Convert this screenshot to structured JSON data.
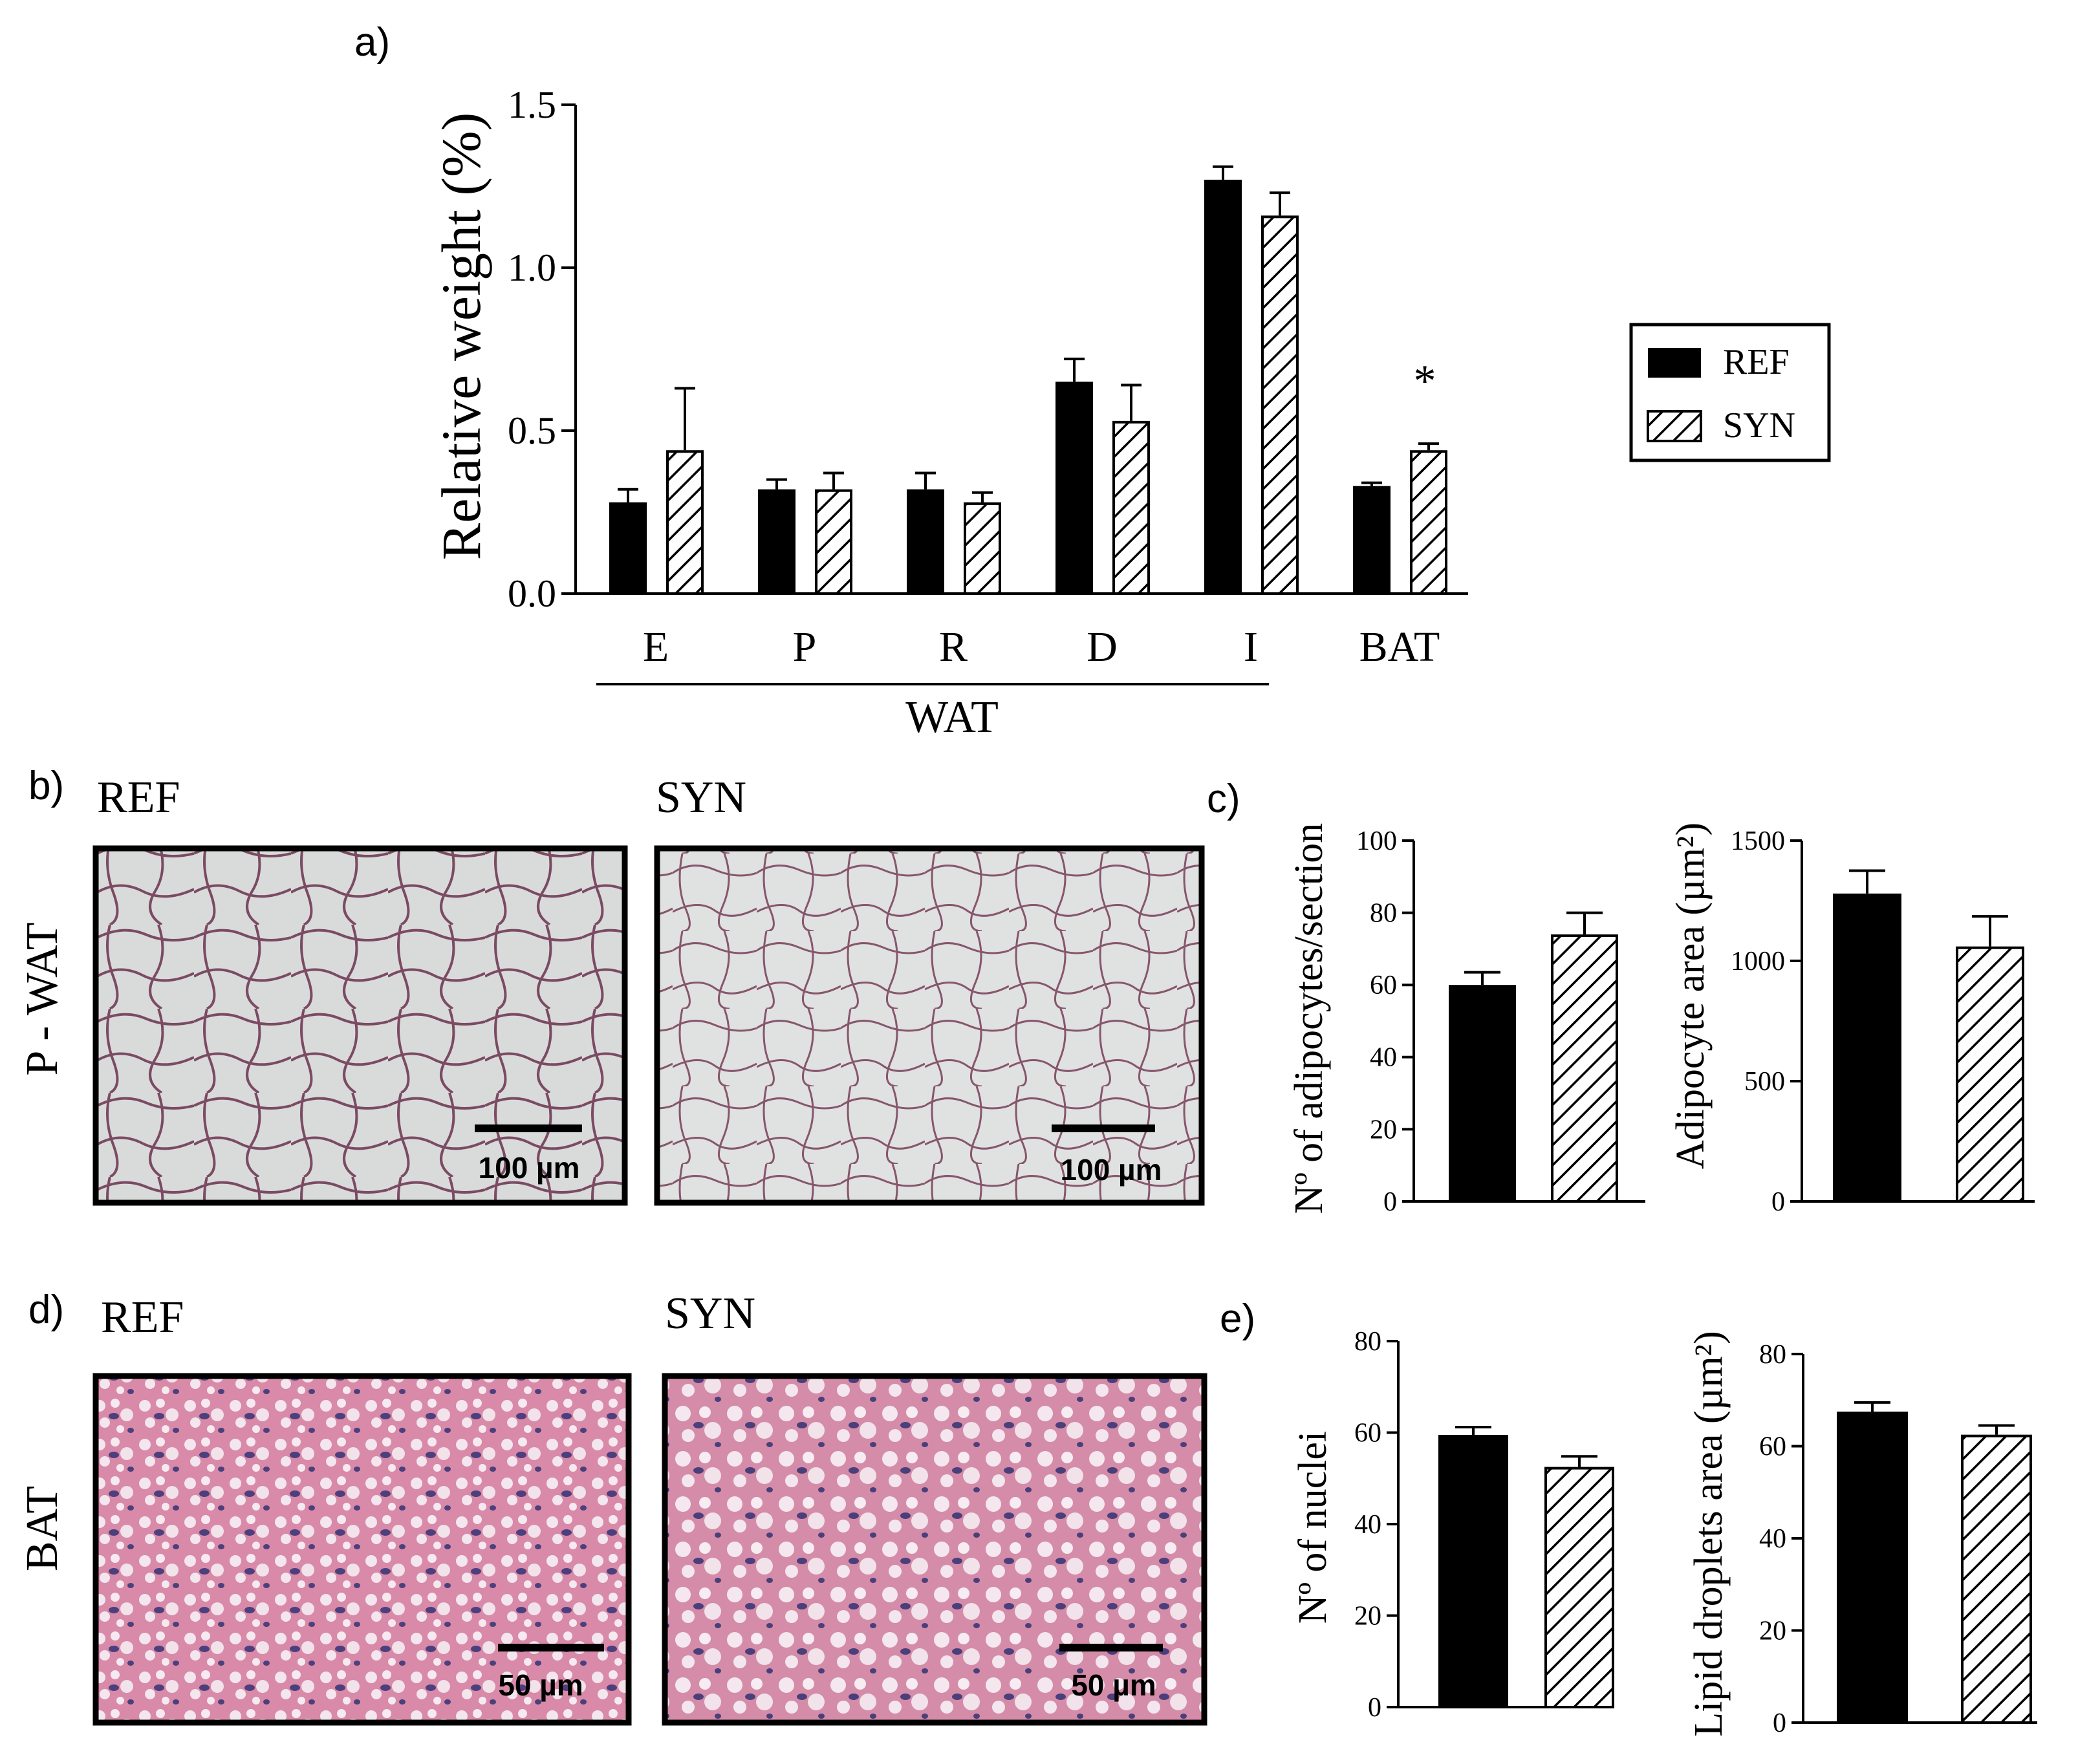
{
  "panels": {
    "a": "a)",
    "b": "b)",
    "c": "c)",
    "d": "d)",
    "e": "e)"
  },
  "legend": {
    "ref": "REF",
    "syn": "SYN"
  },
  "colors": {
    "ref_fill": "#000000",
    "syn_hatch": "#000000",
    "wat_tissue": "#c9cbca",
    "bat_tissue": "#d98aa8",
    "bat_nuclei": "#4a3f7a"
  },
  "chart_data": [
    {
      "panel": "a",
      "type": "bar",
      "ylabel": "Relative weight (%)",
      "ylim": [
        0,
        1.5
      ],
      "yticks": [
        "0.0",
        "0.5",
        "1.0",
        "1.5"
      ],
      "categories": [
        "E",
        "P",
        "R",
        "D",
        "I",
        "BAT"
      ],
      "group_label": "WAT",
      "series": [
        {
          "name": "REF",
          "values": [
            0.28,
            0.32,
            0.32,
            0.65,
            1.27,
            0.33
          ],
          "errors": [
            0.04,
            0.03,
            0.05,
            0.07,
            0.04,
            0.01
          ]
        },
        {
          "name": "SYN",
          "values": [
            0.44,
            0.32,
            0.28,
            0.53,
            1.16,
            0.44
          ],
          "errors": [
            0.19,
            0.05,
            0.03,
            0.11,
            0.07,
            0.02
          ]
        }
      ],
      "annotation": "*"
    },
    {
      "panel": "c-left",
      "type": "bar",
      "ylabel": "Nº of adipocytes/section",
      "ylim": [
        0,
        100
      ],
      "yticks": [
        "0",
        "20",
        "40",
        "60",
        "80",
        "100"
      ],
      "series": [
        {
          "name": "REF",
          "values": [
            60
          ],
          "errors": [
            3.5
          ]
        },
        {
          "name": "SYN",
          "values": [
            74
          ],
          "errors": [
            6
          ]
        }
      ]
    },
    {
      "panel": "c-right",
      "type": "bar",
      "ylabel": "Adipocyte area (µm²)",
      "ylim": [
        0,
        1500
      ],
      "yticks": [
        "0",
        "500",
        "1000",
        "1500"
      ],
      "series": [
        {
          "name": "REF",
          "values": [
            1280
          ],
          "errors": [
            95
          ]
        },
        {
          "name": "SYN",
          "values": [
            1060
          ],
          "errors": [
            125
          ]
        }
      ]
    },
    {
      "panel": "e-left",
      "type": "bar",
      "ylabel": "Nº of nuclei",
      "ylim": [
        0,
        80
      ],
      "yticks": [
        "0",
        "20",
        "40",
        "60",
        "80"
      ],
      "series": [
        {
          "name": "REF",
          "values": [
            59.5
          ],
          "errors": [
            1.7
          ]
        },
        {
          "name": "SYN",
          "values": [
            52.5
          ],
          "errors": [
            2.3
          ]
        }
      ]
    },
    {
      "panel": "e-right",
      "type": "bar",
      "ylabel": "Lipid droplets area (µm²)",
      "ylim": [
        0,
        80
      ],
      "yticks": [
        "0",
        "20",
        "40",
        "60",
        "80"
      ],
      "series": [
        {
          "name": "REF",
          "values": [
            67.5
          ],
          "errors": [
            2
          ]
        },
        {
          "name": "SYN",
          "values": [
            62.5
          ],
          "errors": [
            2
          ]
        }
      ]
    }
  ],
  "micrographs": {
    "row_b": {
      "row_label": "P - WAT",
      "ref_label": "REF",
      "syn_label": "SYN",
      "scale_ref": "100 µm",
      "scale_syn": "100 µm"
    },
    "row_d": {
      "row_label": "BAT",
      "ref_label": "REF",
      "syn_label": "SYN",
      "scale_ref": "50 µm",
      "scale_syn": "50 µm"
    }
  }
}
